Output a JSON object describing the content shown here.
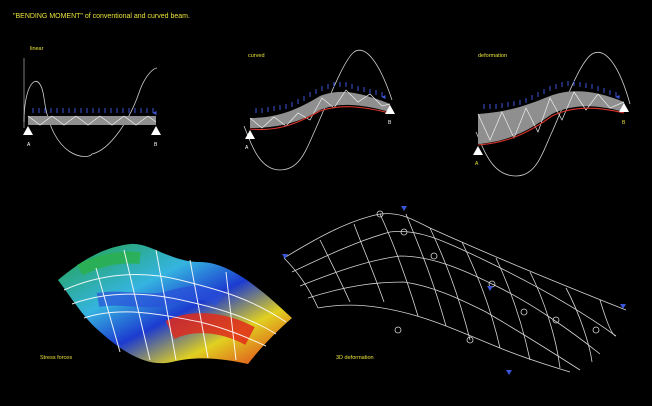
{
  "title": "\"BENDING MOMENT\"  of conventional and curved beam.",
  "panels": [
    {
      "label": "linear",
      "support_left": "A",
      "support_right": "B"
    },
    {
      "label": "curved",
      "support_left": "A",
      "support_right": "B"
    },
    {
      "label": "deformation",
      "support_left": "A",
      "support_right": "B"
    }
  ],
  "bottom": {
    "stress_label": "Stress forces",
    "deformation_label": "3D deformation"
  },
  "colors": {
    "title": "#e8e23a",
    "label": "#e8e23a",
    "load_arrows": "#3b55d8",
    "moment_curve": "#cfcfcf",
    "deflection": "#d8342a",
    "beam_fill": "#8f8f8f",
    "mesh": "#d6d6d6"
  }
}
